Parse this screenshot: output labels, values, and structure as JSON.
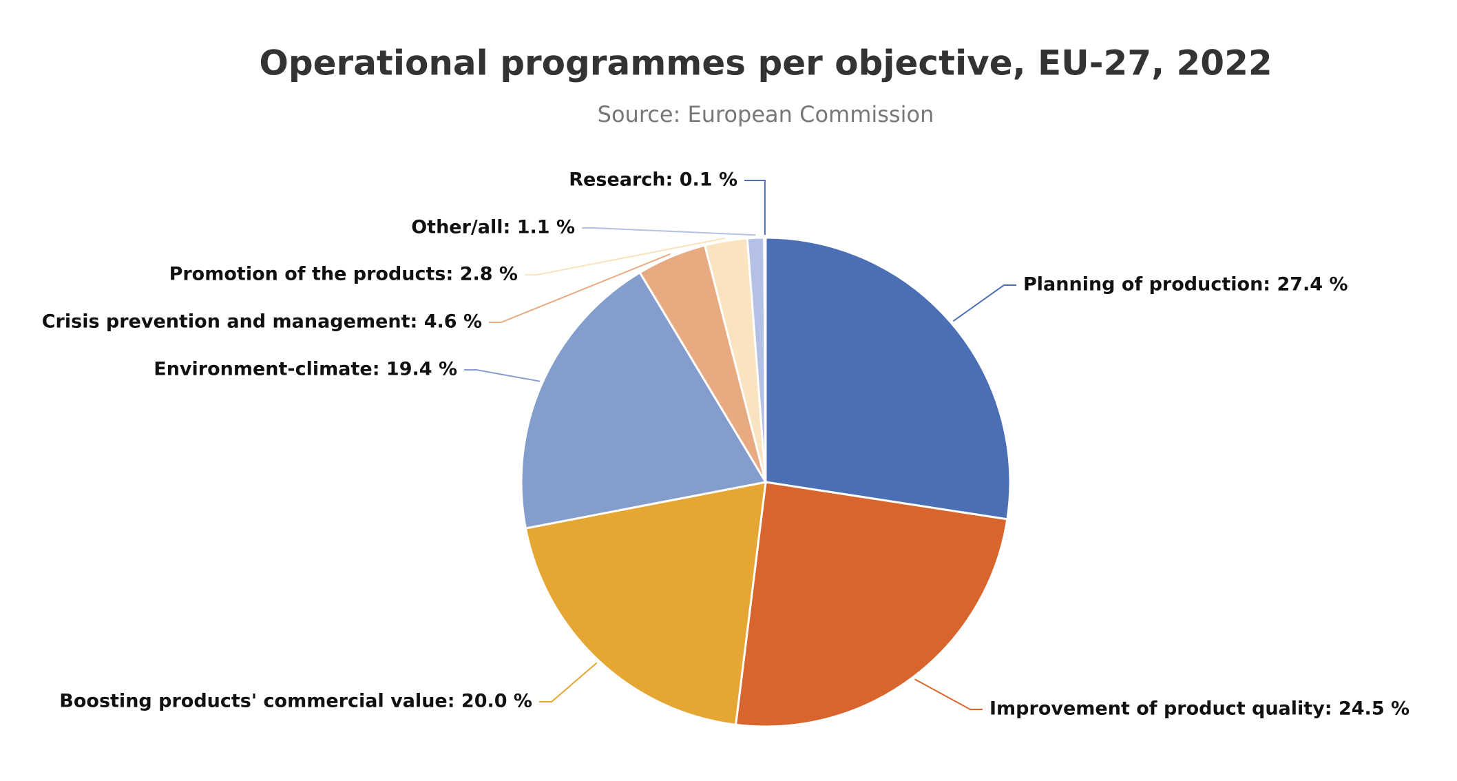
{
  "chart_data": {
    "type": "pie",
    "title": "Operational programmes per objective, EU-27, 2022",
    "subtitle": "Source: European Commission",
    "values": [
      27.4,
      24.5,
      20.0,
      19.4,
      4.6,
      2.8,
      1.1,
      0.1
    ],
    "value_labels": [
      "Planning of production: 27.4 %",
      "Improvement of product quality: 24.5 %",
      "Boosting products' commercial value: 20.0 %",
      "Environment-climate: 19.4 %",
      "Crisis prevention and management: 4.6 %",
      "Promotion of the products: 2.8 %",
      "Other/all: 1.1 %",
      "Research: 0.1 %"
    ],
    "colors": [
      "#4a6fb5",
      "#d9652e",
      "#e5a633",
      "#839dcc",
      "#e8aa80",
      "#f9e4bf",
      "#b4c0e6",
      "#4a6fb5"
    ]
  }
}
